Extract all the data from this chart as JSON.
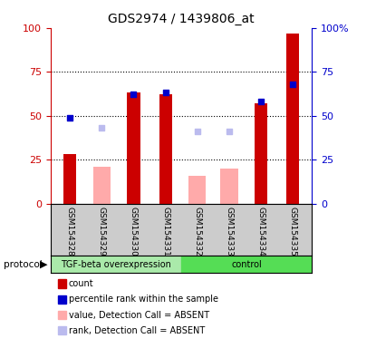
{
  "title": "GDS2974 / 1439806_at",
  "samples": [
    "GSM154328",
    "GSM154329",
    "GSM154330",
    "GSM154331",
    "GSM154332",
    "GSM154333",
    "GSM154334",
    "GSM154335"
  ],
  "red_bars": [
    28,
    0,
    63,
    62,
    0,
    0,
    57,
    97
  ],
  "pink_bars": [
    0,
    21,
    0,
    0,
    16,
    20,
    0,
    0
  ],
  "blue_squares": [
    49,
    0,
    62,
    63,
    0,
    0,
    58,
    68
  ],
  "lavender_squares": [
    0,
    43,
    0,
    0,
    41,
    41,
    0,
    0
  ],
  "ylim": [
    0,
    100
  ],
  "yticks": [
    0,
    25,
    50,
    75,
    100
  ],
  "ytick_labels_left": [
    "0",
    "25",
    "50",
    "75",
    "100"
  ],
  "ytick_labels_right": [
    "0",
    "25",
    "50",
    "75",
    "100%"
  ],
  "hlines": [
    25,
    50,
    75
  ],
  "group1_label": "TGF-beta overexpression",
  "group2_label": "control",
  "group1_count": 4,
  "group2_count": 4,
  "bar_width": 0.4,
  "pink_bar_width": 0.55,
  "red_color": "#cc0000",
  "pink_color": "#ffaaaa",
  "blue_color": "#0000cc",
  "lavender_color": "#bbbbee",
  "bg_color": "#cccccc",
  "group1_bg": "#aaeaaa",
  "group2_bg": "#55dd55",
  "left_axis_color": "#cc0000",
  "right_axis_color": "#0000cc",
  "legend_labels": [
    "count",
    "percentile rank within the sample",
    "value, Detection Call = ABSENT",
    "rank, Detection Call = ABSENT"
  ],
  "legend_colors": [
    "#cc0000",
    "#0000cc",
    "#ffaaaa",
    "#bbbbee"
  ]
}
